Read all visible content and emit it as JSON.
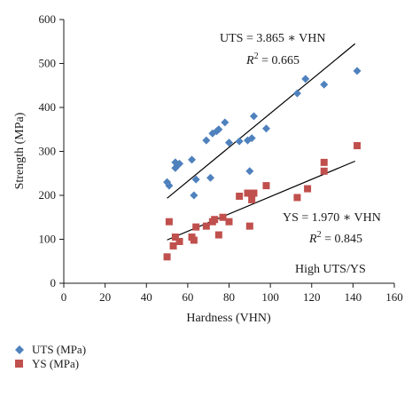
{
  "chart_data": {
    "type": "scatter",
    "title": "",
    "xlabel": "Hardness (VHN)",
    "ylabel": "Strength (MPa)",
    "xlim": [
      0,
      160
    ],
    "ylim": [
      0,
      600
    ],
    "xticks": [
      0,
      20,
      40,
      60,
      80,
      100,
      120,
      140,
      160
    ],
    "yticks": [
      0,
      100,
      200,
      300,
      400,
      500,
      600
    ],
    "grid": false,
    "legend_position": "bottom-left, below plot",
    "series": [
      {
        "name": "UTS (MPa)",
        "marker": "diamond",
        "color": "#4F81BD",
        "points": [
          [
            50,
            230
          ],
          [
            51,
            222
          ],
          [
            54,
            275
          ],
          [
            54,
            262
          ],
          [
            55,
            268
          ],
          [
            56,
            272
          ],
          [
            62,
            281
          ],
          [
            63,
            200
          ],
          [
            64,
            236
          ],
          [
            69,
            325
          ],
          [
            71,
            240
          ],
          [
            72,
            341
          ],
          [
            74,
            346
          ],
          [
            75,
            350
          ],
          [
            78,
            366
          ],
          [
            80,
            320
          ],
          [
            85,
            323
          ],
          [
            89,
            325
          ],
          [
            90,
            255
          ],
          [
            91,
            330
          ],
          [
            92,
            380
          ],
          [
            98,
            352
          ],
          [
            113,
            432
          ],
          [
            117,
            465
          ],
          [
            126,
            452
          ],
          [
            142,
            483
          ]
        ],
        "fit": {
          "slope": 3.865,
          "x_range": [
            50,
            141
          ]
        }
      },
      {
        "name": "YS (MPa)",
        "marker": "square",
        "color": "#C0504D",
        "points": [
          [
            50,
            60
          ],
          [
            51,
            140
          ],
          [
            53,
            85
          ],
          [
            54,
            105
          ],
          [
            56,
            95
          ],
          [
            62,
            105
          ],
          [
            63,
            98
          ],
          [
            64,
            128
          ],
          [
            69,
            130
          ],
          [
            72,
            140
          ],
          [
            73,
            145
          ],
          [
            75,
            110
          ],
          [
            77,
            150
          ],
          [
            80,
            140
          ],
          [
            85,
            198
          ],
          [
            89,
            205
          ],
          [
            90,
            130
          ],
          [
            91,
            190
          ],
          [
            92,
            205
          ],
          [
            98,
            222
          ],
          [
            113,
            195
          ],
          [
            118,
            215
          ],
          [
            126,
            275
          ],
          [
            126,
            255
          ],
          [
            142,
            313
          ]
        ],
        "fit": {
          "slope": 1.97,
          "x_range": [
            50,
            141
          ]
        }
      }
    ],
    "annotations": {
      "uts_equation": "UTS = 3.865 ∗ VHN",
      "uts_r2_prefix": "R",
      "uts_r2_sup": "2",
      "uts_r2_value": " = 0.665",
      "ys_equation": "YS = 1.970 ∗ VHN",
      "ys_r2_prefix": "R",
      "ys_r2_sup": "2",
      "ys_r2_value": " = 0.845",
      "note": "High UTS/YS"
    },
    "colors": {
      "axis": "#1a1a1a",
      "trendline": "#000000"
    }
  }
}
